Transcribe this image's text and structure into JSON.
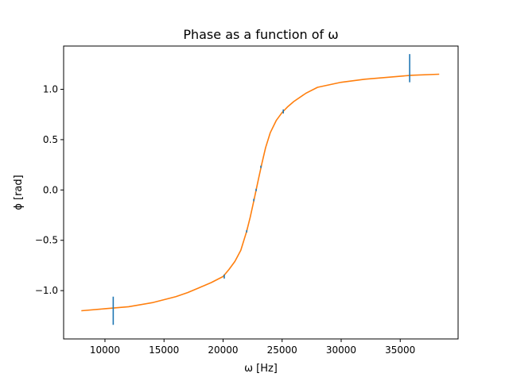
{
  "chart_data": {
    "type": "scatter",
    "title": "Phase as a function of ω",
    "xlabel": "ω [Hz]",
    "ylabel": "ϕ [rad]",
    "xlim": [
      6500,
      39900
    ],
    "ylim": [
      -1.48,
      1.43
    ],
    "xticks": [
      10000,
      15000,
      20000,
      25000,
      30000,
      35000
    ],
    "xtick_labels": [
      "10000",
      "15000",
      "20000",
      "25000",
      "30000",
      "35000"
    ],
    "yticks": [
      1.0,
      0.5,
      0.0,
      -0.5,
      -1.0
    ],
    "ytick_labels": [
      "1.0",
      "0.5",
      "0.0",
      "−0.5",
      "−1.0"
    ],
    "grid": false,
    "legend": false,
    "series": [
      {
        "kind": "errorbar",
        "color": "#1f77b4",
        "points": [
          {
            "x": 10700,
            "y": -1.2,
            "yerr": 0.14
          },
          {
            "x": 20100,
            "y": -0.86,
            "yerr": 0.02
          },
          {
            "x": 22000,
            "y": -0.41,
            "yerr": 0.01
          },
          {
            "x": 22600,
            "y": -0.1,
            "yerr": 0.01
          },
          {
            "x": 22800,
            "y": 0.0,
            "yerr": 0.01
          },
          {
            "x": 23200,
            "y": 0.23,
            "yerr": 0.01
          },
          {
            "x": 25100,
            "y": 0.78,
            "yerr": 0.02
          },
          {
            "x": 35800,
            "y": 1.21,
            "yerr": 0.14
          }
        ]
      },
      {
        "kind": "line",
        "color": "#ff7f0e",
        "x": [
          8000,
          10000,
          12000,
          14000,
          16000,
          17000,
          18000,
          19000,
          20000,
          20500,
          21000,
          21500,
          22000,
          22300,
          22600,
          22800,
          23000,
          23300,
          23600,
          24000,
          24500,
          25000,
          25500,
          26000,
          27000,
          28000,
          30000,
          32000,
          34000,
          36000,
          38300
        ],
        "y": [
          -1.2,
          -1.18,
          -1.16,
          -1.12,
          -1.06,
          -1.02,
          -0.97,
          -0.92,
          -0.86,
          -0.79,
          -0.71,
          -0.6,
          -0.41,
          -0.27,
          -0.11,
          0.0,
          0.11,
          0.27,
          0.42,
          0.57,
          0.69,
          0.77,
          0.83,
          0.88,
          0.96,
          1.02,
          1.07,
          1.1,
          1.12,
          1.14,
          1.15
        ]
      }
    ]
  }
}
